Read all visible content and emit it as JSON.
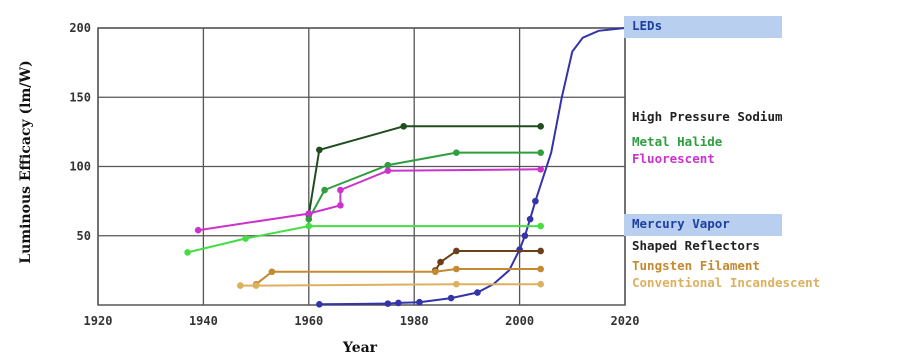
{
  "chart_data": {
    "type": "line",
    "title": "",
    "xlabel": "Year",
    "ylabel": "Luminous Efficacy (lm/W)",
    "xlim": [
      1920,
      2020
    ],
    "ylim": [
      0,
      200
    ],
    "xticks": [
      "1920",
      "1940",
      "1960",
      "1980",
      "2000",
      "2020"
    ],
    "yticks": [
      "50",
      "100",
      "150",
      "200"
    ],
    "grid": true,
    "series": [
      {
        "name": "LEDs",
        "color": "#3333aa",
        "highlight": "#b9cff0",
        "markers": true,
        "points": [
          [
            1962,
            0.5
          ],
          [
            1968,
            0.7
          ],
          [
            1975,
            1
          ],
          [
            1977,
            1.5
          ],
          [
            1981,
            2
          ],
          [
            1987,
            5
          ],
          [
            1992,
            9
          ],
          [
            1995,
            15
          ],
          [
            1998,
            25
          ],
          [
            2000,
            40
          ],
          [
            2001,
            50
          ],
          [
            2002,
            62
          ],
          [
            2003,
            75
          ],
          [
            2006,
            110
          ],
          [
            2008,
            150
          ],
          [
            2010,
            183
          ],
          [
            2012,
            193
          ],
          [
            2015,
            198
          ],
          [
            2020,
            200
          ]
        ],
        "marker_points": [
          [
            1962,
            0.5
          ],
          [
            1975,
            1
          ],
          [
            1977,
            1.5
          ],
          [
            1981,
            2
          ],
          [
            1987,
            5
          ],
          [
            1992,
            9
          ],
          [
            2000,
            40
          ],
          [
            2001,
            50
          ],
          [
            2002,
            62
          ],
          [
            2003,
            75
          ]
        ]
      },
      {
        "name": "High Pressure Sodium",
        "color": "#1f4d1f",
        "markers": true,
        "points": [
          [
            1960,
            65
          ],
          [
            1962,
            112
          ],
          [
            1978,
            129
          ],
          [
            2004,
            129
          ]
        ]
      },
      {
        "name": "Metal Halide",
        "color": "#2e9e3e",
        "markers": true,
        "points": [
          [
            1960,
            62
          ],
          [
            1963,
            83
          ],
          [
            1975,
            101
          ],
          [
            1988,
            110
          ],
          [
            2004,
            110
          ]
        ]
      },
      {
        "name": "Fluorescent",
        "color": "#cc33cc",
        "markers": true,
        "points": [
          [
            1939,
            54
          ],
          [
            1960,
            66
          ],
          [
            1966,
            72
          ],
          [
            1966,
            83
          ],
          [
            1975,
            97
          ],
          [
            2004,
            98
          ]
        ]
      },
      {
        "name": "Mercury Vapor",
        "color": "#44dd44",
        "highlight": "#b9cff0",
        "markers": true,
        "points": [
          [
            1937,
            38
          ],
          [
            1948,
            48
          ],
          [
            1960,
            57
          ],
          [
            2004,
            57
          ]
        ]
      },
      {
        "name": "Shaped Reflectors",
        "color": "#6b3f1a",
        "markers": true,
        "points": [
          [
            1984,
            25
          ],
          [
            1985,
            31
          ],
          [
            1988,
            39
          ],
          [
            2004,
            39
          ]
        ]
      },
      {
        "name": "Tungsten Filament",
        "color": "#c58a30",
        "markers": true,
        "points": [
          [
            1950,
            15
          ],
          [
            1953,
            24
          ],
          [
            1984,
            24
          ],
          [
            1988,
            26
          ],
          [
            2004,
            26
          ]
        ]
      },
      {
        "name": "Conventional Incandescent",
        "color": "#ddb060",
        "markers": true,
        "points": [
          [
            1947,
            14
          ],
          [
            1950,
            14
          ],
          [
            1988,
            15
          ],
          [
            2004,
            15
          ]
        ]
      }
    ]
  }
}
